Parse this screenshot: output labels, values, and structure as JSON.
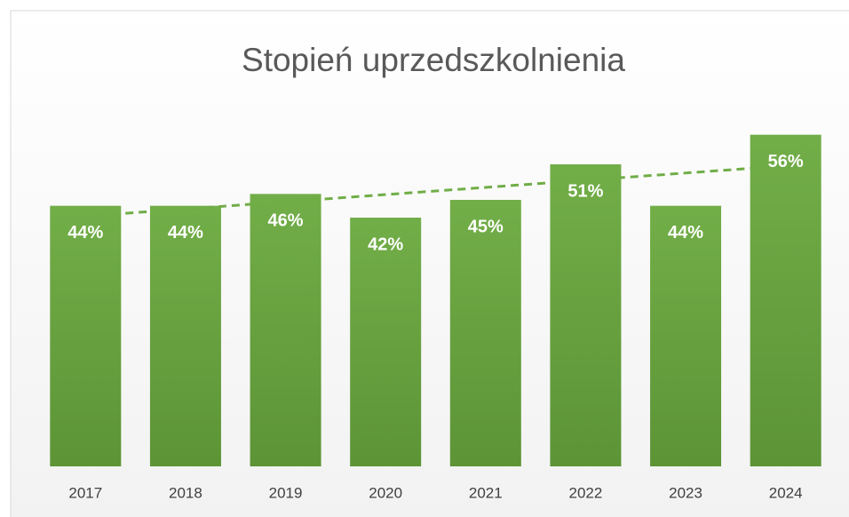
{
  "chart_data": {
    "type": "bar",
    "title": "Stopień uprzedszkolnienia",
    "categories": [
      "2017",
      "2018",
      "2019",
      "2020",
      "2021",
      "2022",
      "2023",
      "2024"
    ],
    "values": [
      44,
      44,
      46,
      42,
      45,
      51,
      44,
      56
    ],
    "value_labels": [
      "44%",
      "44%",
      "46%",
      "42%",
      "45%",
      "51%",
      "44%",
      "56%"
    ],
    "color": "#6aa843",
    "ylim": [
      0,
      60
    ],
    "trendline": true
  }
}
